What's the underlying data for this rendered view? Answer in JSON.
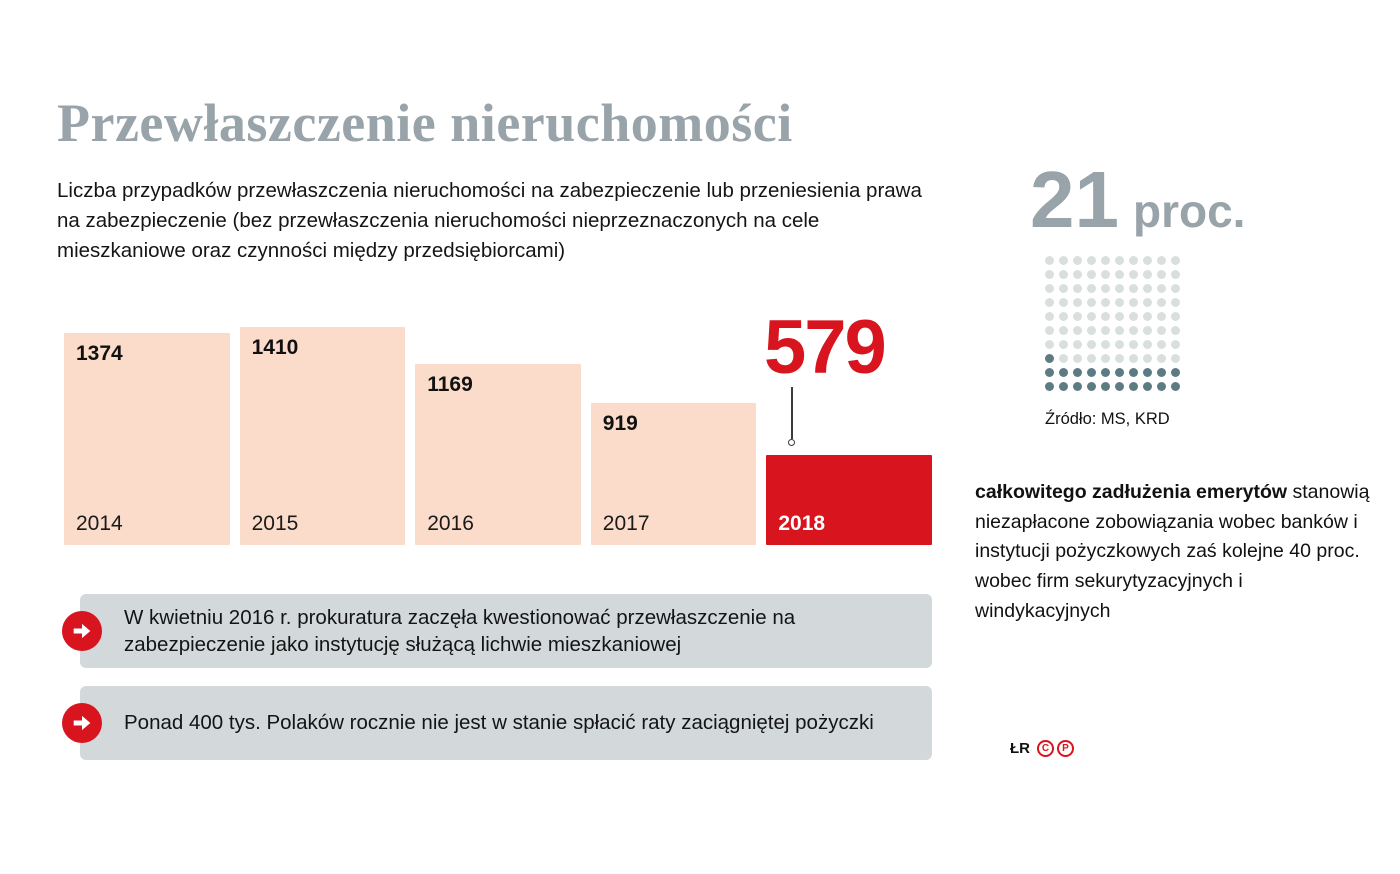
{
  "title": "Przewłaszczenie nieruchomości",
  "description": "Liczba przypadków przewłaszczenia nieruchomości na zabezpieczenie lub przeniesienia prawa na zabezpieczenie (bez przewłaszczenia nieruchomości nieprzeznaczonych na cele mieszkaniowe oraz czynności między przedsiębiorcami)",
  "chart_data": {
    "type": "bar",
    "categories": [
      "2014",
      "2015",
      "2016",
      "2017",
      "2018"
    ],
    "values": [
      1374,
      1410,
      1169,
      919,
      579
    ],
    "highlight_category": "2018",
    "highlight_value_label": "579",
    "bar_color": "#fbdcca",
    "highlight_color": "#d8141f",
    "ylim": [
      0,
      1410
    ],
    "grid": false,
    "legend": false,
    "value_labels": true
  },
  "waffle": {
    "value": "21",
    "unit": "proc.",
    "percent": 21,
    "rows": 10,
    "cols": 10,
    "filled_color": "#5d7b83",
    "empty_color": "#d9dedf",
    "source": "Źródło: MS, KRD"
  },
  "aside": {
    "bold_text": "całkowitego zadłużenia emerytów",
    "text": "stanowią niezapłacone zobowiązania wobec banków i instytucji pożyczkowych  zaś kolejne  40 proc. wobec firm sekurytyzacyjnych i windykacyjnych"
  },
  "callouts": [
    {
      "text": "W kwietniu 2016 r. prokuratura zaczęła kwestionować przewłaszczenie na zabezpieczenie jako instytucję służącą lichwie mieszkaniowej"
    },
    {
      "text": "Ponad 400 tys. Polaków rocznie nie jest w stanie spłacić raty zaciągniętej pożyczki"
    }
  ],
  "credits": {
    "author": "ŁR",
    "logo_letters": {
      "c": "C",
      "p": "P"
    }
  },
  "colors": {
    "accent_red": "#d8141f",
    "title_gray": "#98a3aa",
    "callout_bg": "#d3d9db"
  }
}
